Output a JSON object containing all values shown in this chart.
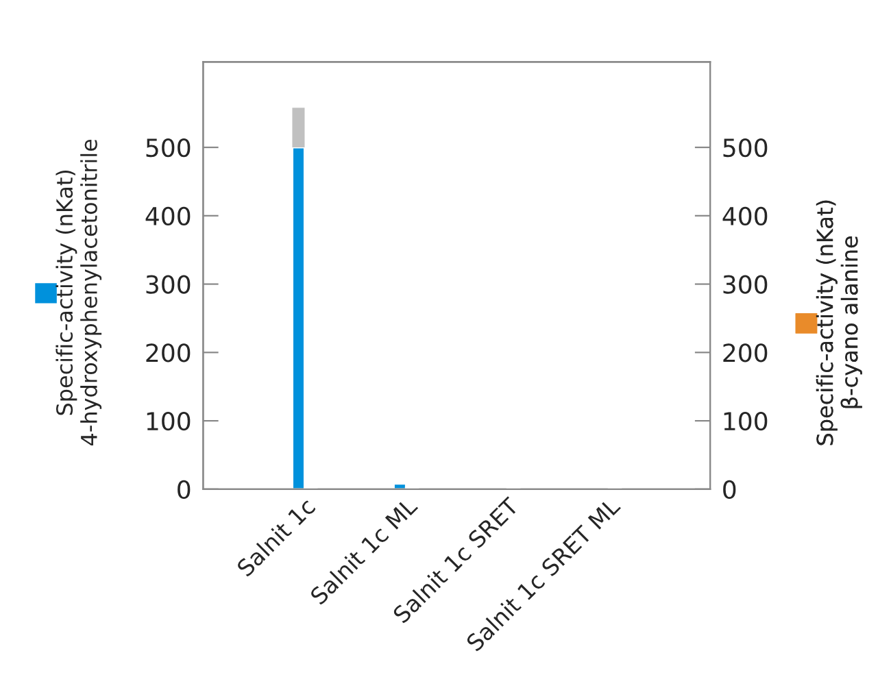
{
  "chart_data": {
    "type": "bar",
    "categories": [
      "Salnit 1c",
      "Salnit 1c ML",
      "Salnit 1c SRET",
      "Salnit 1c SRET ML"
    ],
    "series": [
      {
        "name": "Specific-activity (nKat)\n4-hydroxyphenylacetonitrile",
        "color": "#0091dc",
        "values": [
          500,
          8,
          1,
          1
        ],
        "errors": [
          [
            500,
            558
          ],
          null,
          null,
          null
        ]
      },
      {
        "name": "Specific-activity (nKat)\nβ-cyano alanine",
        "color": "#e98b2a",
        "values": [
          1,
          2,
          1,
          1
        ],
        "axis": "y2"
      }
    ],
    "ylim": [
      0,
      625
    ],
    "yticks": [
      0,
      100,
      200,
      300,
      400,
      500
    ],
    "y2lim": [
      0,
      625
    ],
    "y2ticks": [
      0,
      100,
      200,
      300,
      400,
      500
    ],
    "grid": false,
    "legend": "left"
  }
}
